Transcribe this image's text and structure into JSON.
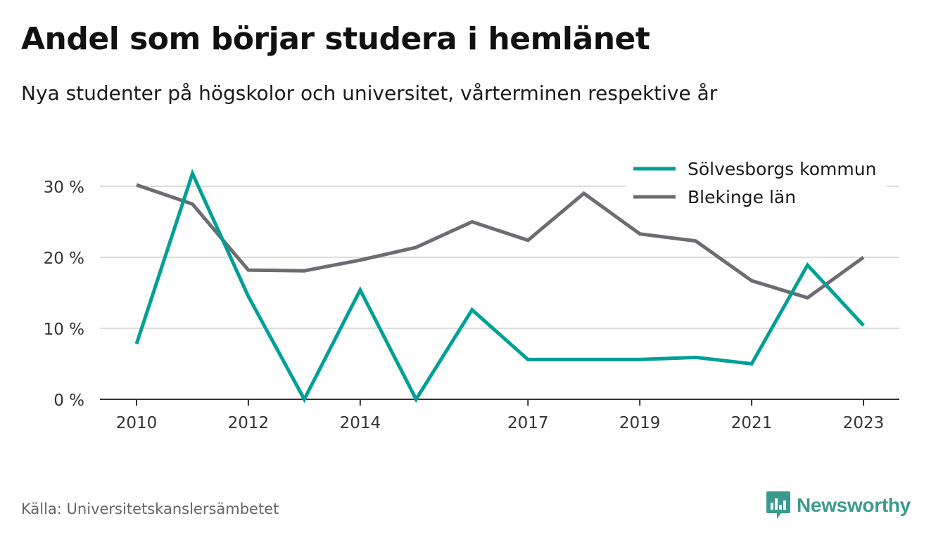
{
  "title": "Andel som börjar studera i hemlänet",
  "subtitle": "Nya studenter på högskolor och universitet, vårterminen respektive år",
  "source": "Källa: Universitetskanslersämbetet",
  "brand": "Newsworthy",
  "colors": {
    "teal": "#00a096",
    "gray": "#6e6c72",
    "grid": "#dddddd",
    "axis": "#333333"
  },
  "chart_data": {
    "type": "line",
    "title": "Andel som börjar studera i hemlänet",
    "xlabel": "",
    "ylabel": "",
    "x": [
      2010,
      2011,
      2012,
      2013,
      2014,
      2015,
      2016,
      2017,
      2018,
      2019,
      2020,
      2021,
      2022,
      2023
    ],
    "x_tick_labels": [
      "2010",
      "2012",
      "2014",
      "2017",
      "2019",
      "2021",
      "2023"
    ],
    "ylim": [
      0,
      30
    ],
    "y_ticks": [
      0,
      10,
      20,
      30
    ],
    "y_tick_labels": [
      "0 %",
      "10 %",
      "20 %",
      "30 %"
    ],
    "grid": true,
    "legend_position": "top-right",
    "series": [
      {
        "name": "Sölvesborgs kommun",
        "color": "#00a096",
        "values": [
          7.8,
          31.8,
          14.5,
          0.0,
          15.4,
          0.0,
          12.6,
          5.6,
          5.6,
          5.6,
          5.9,
          5.0,
          18.9,
          10.4
        ]
      },
      {
        "name": "Blekinge län",
        "color": "#6e6c72",
        "values": [
          30.2,
          27.5,
          18.2,
          18.1,
          19.6,
          21.4,
          25.0,
          22.4,
          29.0,
          23.3,
          22.3,
          16.7,
          14.3,
          20.0
        ]
      }
    ]
  }
}
